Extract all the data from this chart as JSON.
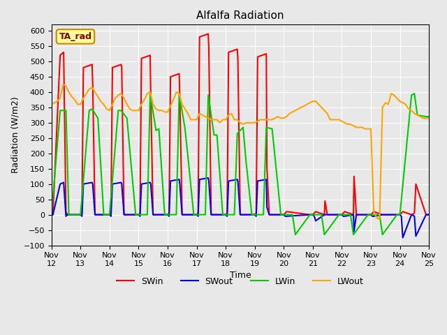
{
  "title": "Alfalfa Radiation",
  "ylabel": "Radiation (W/m2)",
  "xlabel": "Time",
  "xlim": [
    0,
    13
  ],
  "ylim": [
    -100,
    620
  ],
  "yticks": [
    -100,
    -50,
    0,
    50,
    100,
    150,
    200,
    250,
    300,
    350,
    400,
    450,
    500,
    550,
    600
  ],
  "legend_label": "TA_rad",
  "background_color": "#e8e8e8",
  "plot_bg_color": "#e8e8e8",
  "grid_color": "#ffffff",
  "series": {
    "SWin": {
      "color": "#ff0000",
      "linewidth": 1.5
    },
    "SWout": {
      "color": "#0000ff",
      "linewidth": 1.5
    },
    "LWin": {
      "color": "#00cc00",
      "linewidth": 1.5
    },
    "LWout": {
      "color": "#ffa500",
      "linewidth": 1.5
    }
  },
  "SWin_x": [
    0,
    0.05,
    0.3,
    0.42,
    0.5,
    0.55,
    0.9,
    1.0,
    1.05,
    1.1,
    1.4,
    1.42,
    1.5,
    1.6,
    1.9,
    2.0,
    2.05,
    2.1,
    2.4,
    2.42,
    2.5,
    2.6,
    2.9,
    3.0,
    3.05,
    3.1,
    3.4,
    3.42,
    3.5,
    3.6,
    3.9,
    4.0,
    4.05,
    4.1,
    4.4,
    4.42,
    4.5,
    4.55,
    4.9,
    5.0,
    5.05,
    5.1,
    5.4,
    5.42,
    5.5,
    5.55,
    5.9,
    6.0,
    6.05,
    6.1,
    6.4,
    6.42,
    6.5,
    6.55,
    6.9,
    7.0,
    7.05,
    7.1,
    7.4,
    7.42,
    7.5,
    7.55,
    7.9,
    8.0,
    8.05,
    8.1,
    8.9,
    9.0,
    9.05,
    9.1,
    9.4,
    9.42,
    9.5,
    9.55,
    9.9,
    10.0,
    10.05,
    10.1,
    10.4,
    10.42,
    10.5,
    10.55,
    10.9,
    11.0,
    11.05,
    11.1,
    11.4,
    11.42,
    11.5,
    11.55,
    11.9,
    12.0,
    12.05,
    12.1,
    12.4,
    12.42,
    12.5,
    12.55,
    12.9,
    13.0
  ],
  "SWin_y": [
    0,
    0,
    520,
    530,
    10,
    0,
    0,
    0,
    5,
    480,
    490,
    430,
    0,
    0,
    0,
    0,
    5,
    480,
    490,
    480,
    0,
    0,
    0,
    0,
    5,
    510,
    520,
    390,
    0,
    0,
    0,
    0,
    5,
    450,
    460,
    385,
    0,
    0,
    0,
    0,
    5,
    580,
    590,
    540,
    0,
    0,
    0,
    0,
    5,
    530,
    540,
    510,
    0,
    0,
    0,
    0,
    5,
    515,
    525,
    155,
    0,
    0,
    0,
    0,
    5,
    10,
    0,
    0,
    5,
    10,
    0,
    45,
    0,
    0,
    0,
    0,
    5,
    10,
    0,
    125,
    0,
    0,
    0,
    0,
    5,
    10,
    0,
    0,
    0,
    0,
    0,
    0,
    5,
    10,
    0,
    0,
    5,
    100,
    0,
    0
  ],
  "SWout_x": [
    0,
    0.05,
    0.3,
    0.42,
    0.5,
    0.55,
    0.9,
    1.0,
    1.05,
    1.1,
    1.4,
    1.42,
    1.5,
    1.6,
    1.9,
    2.0,
    2.05,
    2.1,
    2.4,
    2.42,
    2.5,
    2.6,
    2.9,
    3.0,
    3.05,
    3.1,
    3.4,
    3.42,
    3.5,
    3.6,
    3.9,
    4.0,
    4.05,
    4.1,
    4.4,
    4.42,
    4.5,
    4.55,
    4.9,
    5.0,
    5.05,
    5.1,
    5.4,
    5.42,
    5.5,
    5.55,
    5.9,
    6.0,
    6.05,
    6.1,
    6.4,
    6.42,
    6.5,
    6.55,
    6.9,
    7.0,
    7.05,
    7.1,
    7.4,
    7.42,
    7.5,
    7.55,
    7.9,
    8.0,
    8.05,
    8.1,
    8.9,
    9.0,
    9.05,
    9.1,
    9.4,
    9.42,
    9.5,
    9.55,
    9.9,
    10.0,
    10.05,
    10.1,
    10.4,
    10.42,
    10.5,
    10.55,
    10.9,
    11.0,
    11.05,
    11.1,
    11.4,
    11.42,
    11.5,
    11.55,
    11.9,
    12.0,
    12.05,
    12.1,
    12.4,
    12.42,
    12.5,
    12.55,
    12.9,
    13.0
  ],
  "SWout_y": [
    0,
    0,
    100,
    105,
    -5,
    0,
    0,
    0,
    -5,
    100,
    105,
    100,
    0,
    0,
    0,
    0,
    -5,
    100,
    105,
    100,
    0,
    0,
    0,
    0,
    -5,
    100,
    105,
    100,
    0,
    0,
    0,
    0,
    -5,
    110,
    115,
    100,
    0,
    0,
    0,
    0,
    -5,
    115,
    120,
    110,
    0,
    0,
    0,
    0,
    -5,
    110,
    115,
    110,
    0,
    0,
    0,
    0,
    -5,
    110,
    115,
    25,
    0,
    0,
    0,
    0,
    -5,
    -5,
    0,
    0,
    -5,
    -20,
    0,
    0,
    0,
    0,
    0,
    0,
    -5,
    -5,
    0,
    -55,
    0,
    0,
    0,
    0,
    -5,
    -5,
    0,
    0,
    0,
    0,
    0,
    0,
    -5,
    -75,
    0,
    0,
    -5,
    -70,
    0,
    0
  ],
  "LWin_x": [
    0,
    0.3,
    0.5,
    0.6,
    0.9,
    1.0,
    1.3,
    1.4,
    1.6,
    1.8,
    1.9,
    2.0,
    2.3,
    2.4,
    2.6,
    2.9,
    3.0,
    3.3,
    3.4,
    3.6,
    3.7,
    3.9,
    4.0,
    4.3,
    4.4,
    4.6,
    4.7,
    4.9,
    5.0,
    5.3,
    5.4,
    5.6,
    5.7,
    5.9,
    6.0,
    6.3,
    6.4,
    6.6,
    6.7,
    6.9,
    7.0,
    7.3,
    7.4,
    7.6,
    7.9,
    8.0,
    8.3,
    8.4,
    8.9,
    9.0,
    9.3,
    9.4,
    9.9,
    10.0,
    10.3,
    10.4,
    10.9,
    11.0,
    11.3,
    11.4,
    11.9,
    12.0,
    12.4,
    12.5,
    12.6,
    12.9,
    13.0
  ],
  "LWin_y": [
    0,
    340,
    340,
    0,
    0,
    0,
    340,
    345,
    315,
    0,
    0,
    0,
    340,
    340,
    315,
    0,
    0,
    0,
    395,
    275,
    280,
    0,
    0,
    0,
    395,
    280,
    190,
    0,
    0,
    0,
    390,
    260,
    260,
    0,
    0,
    0,
    265,
    285,
    175,
    0,
    0,
    0,
    285,
    280,
    0,
    0,
    0,
    -65,
    0,
    0,
    0,
    -65,
    0,
    0,
    0,
    -65,
    0,
    0,
    0,
    -65,
    0,
    0,
    390,
    395,
    325,
    320,
    320
  ],
  "LWout_x": [
    0,
    0.1,
    0.2,
    0.3,
    0.4,
    0.5,
    0.6,
    0.7,
    0.8,
    0.9,
    1.0,
    1.1,
    1.2,
    1.3,
    1.4,
    1.5,
    1.6,
    1.7,
    1.8,
    1.9,
    2.0,
    2.1,
    2.2,
    2.3,
    2.4,
    2.5,
    2.6,
    2.7,
    2.8,
    2.9,
    3.0,
    3.1,
    3.2,
    3.3,
    3.4,
    3.5,
    3.6,
    3.7,
    3.8,
    3.9,
    4.0,
    4.1,
    4.2,
    4.3,
    4.4,
    4.5,
    4.6,
    4.7,
    4.8,
    4.9,
    5.0,
    5.1,
    5.2,
    5.3,
    5.4,
    5.5,
    5.6,
    5.7,
    5.8,
    5.9,
    6.0,
    6.1,
    6.2,
    6.3,
    6.4,
    6.5,
    6.6,
    6.7,
    6.8,
    6.9,
    7.0,
    7.1,
    7.2,
    7.3,
    7.4,
    7.5,
    7.6,
    7.7,
    7.8,
    7.9,
    8.0,
    8.1,
    8.2,
    8.3,
    8.4,
    8.5,
    8.6,
    8.7,
    8.8,
    8.9,
    9.0,
    9.1,
    9.2,
    9.3,
    9.4,
    9.5,
    9.6,
    9.7,
    9.8,
    9.9,
    10.0,
    10.1,
    10.2,
    10.3,
    10.4,
    10.5,
    10.6,
    10.7,
    10.8,
    10.9,
    11.0,
    11.1,
    11.2,
    11.3,
    11.4,
    11.5,
    11.6,
    11.7,
    11.8,
    11.9,
    12.0,
    12.1,
    12.2,
    12.3,
    12.4,
    12.5,
    12.6,
    12.7,
    12.8,
    12.9,
    13.0
  ],
  "LWout_y": [
    360,
    365,
    370,
    380,
    425,
    420,
    400,
    385,
    375,
    360,
    360,
    380,
    395,
    410,
    415,
    400,
    385,
    370,
    360,
    345,
    340,
    360,
    380,
    390,
    395,
    380,
    360,
    345,
    340,
    340,
    340,
    360,
    375,
    395,
    400,
    360,
    345,
    340,
    340,
    335,
    335,
    355,
    375,
    400,
    395,
    360,
    345,
    330,
    310,
    310,
    310,
    330,
    325,
    320,
    315,
    310,
    310,
    310,
    300,
    310,
    310,
    325,
    330,
    310,
    310,
    300,
    295,
    300,
    300,
    300,
    300,
    305,
    310,
    310,
    310,
    310,
    310,
    315,
    320,
    315,
    315,
    320,
    330,
    335,
    340,
    345,
    350,
    355,
    360,
    365,
    370,
    370,
    360,
    350,
    340,
    330,
    310,
    310,
    310,
    310,
    305,
    300,
    295,
    295,
    290,
    285,
    285,
    285,
    280,
    280,
    280,
    10,
    -10,
    -15,
    350,
    365,
    360,
    395,
    390,
    380,
    370,
    365,
    360,
    345,
    340,
    330,
    325,
    320,
    315,
    315,
    315
  ]
}
